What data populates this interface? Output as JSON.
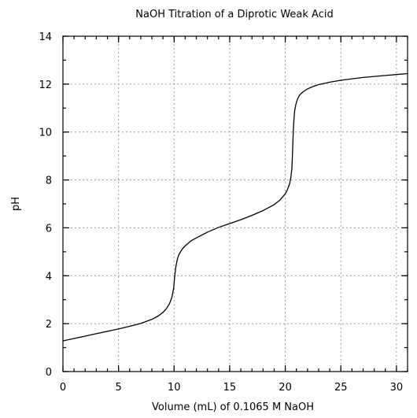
{
  "chart_data": {
    "type": "line",
    "title": "NaOH Titration of a Diprotic Weak Acid",
    "xlabel": "Volume (mL) of 0.1065 M NaOH",
    "ylabel": "pH",
    "xlim": [
      0,
      31
    ],
    "ylim": [
      0,
      14
    ],
    "x_ticks": [
      0,
      5,
      10,
      15,
      20,
      25,
      30
    ],
    "y_ticks": [
      0,
      2,
      4,
      6,
      8,
      10,
      12,
      14
    ],
    "x_minor_step": 1,
    "y_minor_step": 1,
    "grid": true,
    "legend": "none",
    "line_color": "#000000",
    "series": [
      {
        "x": [
          0,
          1,
          2,
          3,
          4,
          5,
          6,
          7,
          8,
          8.5,
          9,
          9.3,
          9.6,
          9.8,
          9.95,
          10.05,
          10.15,
          10.25,
          10.35,
          10.45,
          10.6,
          10.8,
          11,
          11.5,
          12,
          13,
          14,
          15,
          16,
          17,
          18,
          19,
          19.5,
          20,
          20.2,
          20.4,
          20.5,
          20.6,
          20.65,
          20.7,
          20.75,
          20.8,
          20.85,
          20.95,
          21.1,
          21.3,
          21.6,
          22,
          22.5,
          23,
          24,
          25,
          26,
          27,
          28,
          29,
          30,
          31
        ],
        "y": [
          1.28,
          1.38,
          1.48,
          1.58,
          1.68,
          1.78,
          1.89,
          2.01,
          2.18,
          2.3,
          2.47,
          2.62,
          2.85,
          3.1,
          3.45,
          3.95,
          4.35,
          4.6,
          4.78,
          4.9,
          5.02,
          5.15,
          5.25,
          5.45,
          5.58,
          5.82,
          6.02,
          6.18,
          6.34,
          6.52,
          6.72,
          6.97,
          7.15,
          7.42,
          7.6,
          7.85,
          8.1,
          8.5,
          9.1,
          9.8,
          10.3,
          10.65,
          10.9,
          11.15,
          11.38,
          11.55,
          11.68,
          11.8,
          11.9,
          11.98,
          12.08,
          12.16,
          12.22,
          12.28,
          12.32,
          12.36,
          12.4,
          12.44
        ]
      }
    ]
  }
}
